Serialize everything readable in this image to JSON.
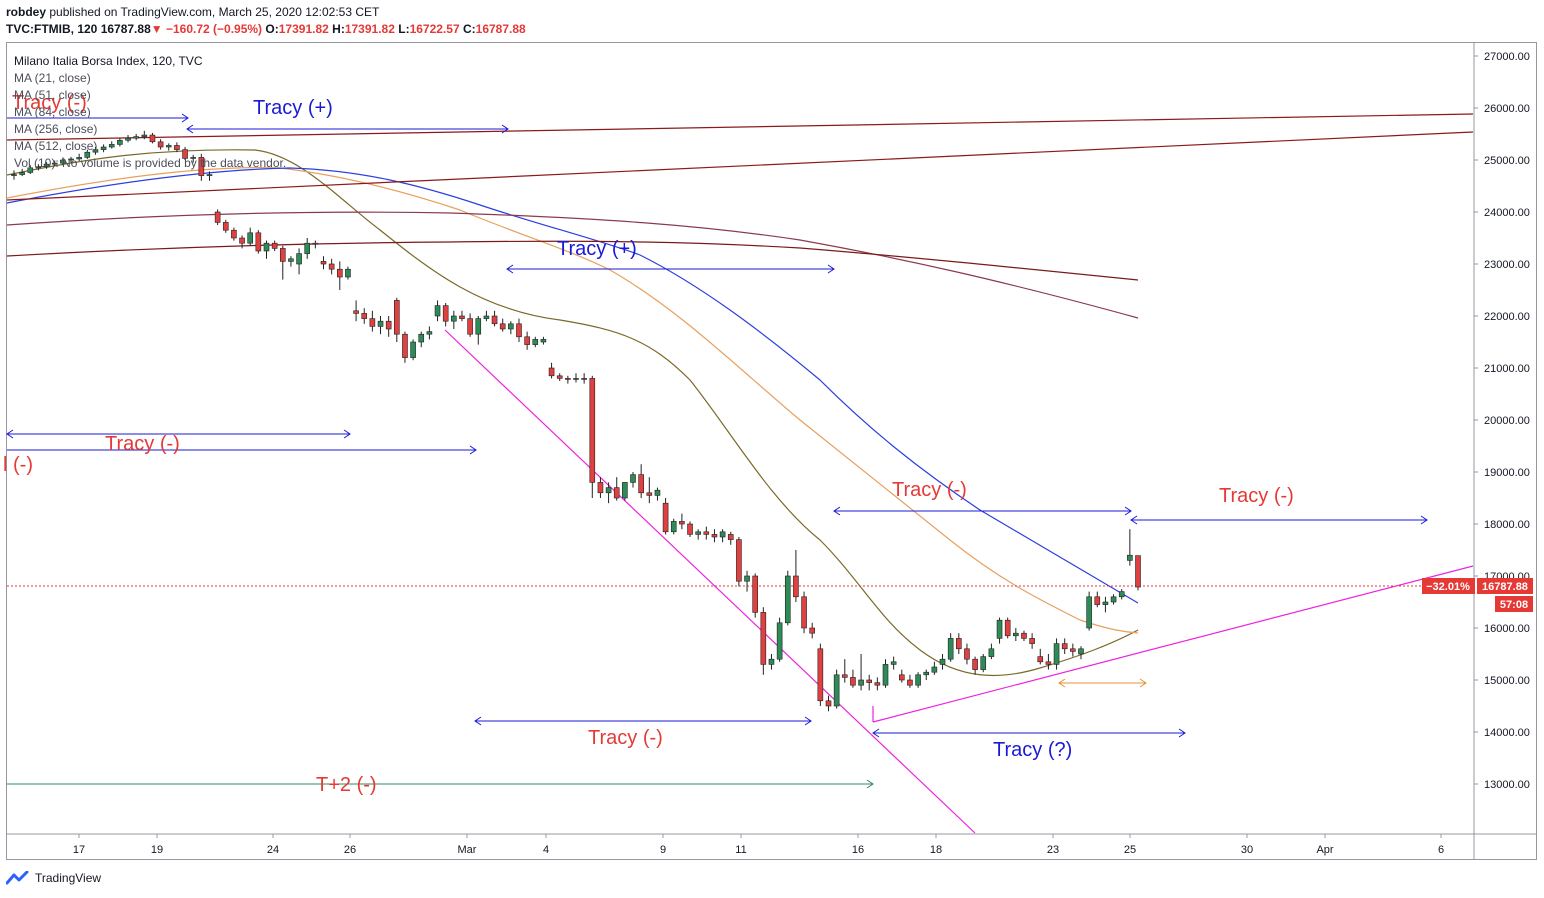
{
  "header": {
    "author": "robdey",
    "published_text": "published on TradingView.com, March 25, 2020 12:02:53 CET",
    "symbol": "TVC:FTMIB, 120",
    "last": "16787.88",
    "change": "−160.72 (−0.95%)",
    "open_label": "O:",
    "open": "17391.82",
    "high_label": "H:",
    "high": "17391.82",
    "low_label": "L:",
    "low": "16722.57",
    "close_label": "C:",
    "close": "16787.88"
  },
  "legend": {
    "title": "Milano Italia Borsa Index, 120, TVC",
    "lines": [
      "MA (21, close)",
      "MA (51, close)",
      "MA (84, close)",
      "MA (256, close)",
      "MA (512, close)",
      "Vol (10): No volume is provided by the data vendor."
    ]
  },
  "price_labels": {
    "percent": "−32.01%",
    "price": "16787.88",
    "countdown": "57:08"
  },
  "brand": "TradingView",
  "chart_data": {
    "type": "candlestick",
    "ylim": [
      12000,
      27300
    ],
    "y_ticks": [
      13000,
      14000,
      15000,
      16000,
      17000,
      18000,
      19000,
      20000,
      21000,
      22000,
      23000,
      24000,
      25000,
      26000,
      27000
    ],
    "y_tick_labels": [
      "13000.00",
      "14000.00",
      "15000.00",
      "16000.00",
      "17000.00",
      "18000.00",
      "19000.00",
      "20000.00",
      "21000.00",
      "22000.00",
      "23000.00",
      "24000.00",
      "25000.00",
      "26000.00",
      "27000.00"
    ],
    "x_tick_labels": [
      "17",
      "19",
      "24",
      "26",
      "Mar",
      "4",
      "9",
      "11",
      "16",
      "18",
      "23",
      "25",
      "30",
      "Apr",
      "6"
    ],
    "last_price": 16787.88,
    "annotations": [
      "Tracy (-)",
      "Tracy (+)",
      "Tracy (+)",
      "Tracy (-)",
      "l (-)",
      "Tracy (-)",
      "Tracy (-)",
      "Tracy (-)",
      "Tracy (?)",
      "T+2 (-)"
    ],
    "ma_series": [
      "MA (21, close)",
      "MA (51, close)",
      "MA (84, close)",
      "MA (256, close)",
      "MA (512, close)"
    ],
    "candles": [
      {
        "o": 24700,
        "h": 24800,
        "l": 24620,
        "c": 24720
      },
      {
        "o": 24720,
        "h": 24830,
        "l": 24690,
        "c": 24760
      },
      {
        "o": 24760,
        "h": 24900,
        "l": 24730,
        "c": 24850
      },
      {
        "o": 24850,
        "h": 24920,
        "l": 24800,
        "c": 24870
      },
      {
        "o": 24870,
        "h": 24960,
        "l": 24830,
        "c": 24920
      },
      {
        "o": 24920,
        "h": 24990,
        "l": 24880,
        "c": 24940
      },
      {
        "o": 24940,
        "h": 25050,
        "l": 24900,
        "c": 25000
      },
      {
        "o": 25000,
        "h": 25060,
        "l": 24950,
        "c": 25020
      },
      {
        "o": 25020,
        "h": 25120,
        "l": 24980,
        "c": 25050
      },
      {
        "o": 25050,
        "h": 25200,
        "l": 25020,
        "c": 25150
      },
      {
        "o": 25150,
        "h": 25250,
        "l": 25100,
        "c": 25200
      },
      {
        "o": 25200,
        "h": 25300,
        "l": 25150,
        "c": 25250
      },
      {
        "o": 25250,
        "h": 25360,
        "l": 25220,
        "c": 25300
      },
      {
        "o": 25300,
        "h": 25420,
        "l": 25260,
        "c": 25380
      },
      {
        "o": 25380,
        "h": 25480,
        "l": 25340,
        "c": 25420
      },
      {
        "o": 25420,
        "h": 25500,
        "l": 25380,
        "c": 25450
      },
      {
        "o": 25450,
        "h": 25560,
        "l": 25400,
        "c": 25480
      },
      {
        "o": 25480,
        "h": 25520,
        "l": 25320,
        "c": 25350
      },
      {
        "o": 25350,
        "h": 25400,
        "l": 25200,
        "c": 25250
      },
      {
        "o": 25250,
        "h": 25320,
        "l": 25180,
        "c": 25280
      },
      {
        "o": 25280,
        "h": 25340,
        "l": 25150,
        "c": 25200
      },
      {
        "o": 25200,
        "h": 25250,
        "l": 25000,
        "c": 25030
      },
      {
        "o": 25030,
        "h": 25100,
        "l": 24950,
        "c": 25050
      },
      {
        "o": 25050,
        "h": 25120,
        "l": 24600,
        "c": 24700
      },
      {
        "o": 24700,
        "h": 24780,
        "l": 24600,
        "c": 24720
      },
      {
        "o": 24000,
        "h": 24050,
        "l": 23750,
        "c": 23800
      },
      {
        "o": 23800,
        "h": 23850,
        "l": 23600,
        "c": 23650
      },
      {
        "o": 23650,
        "h": 23700,
        "l": 23450,
        "c": 23500
      },
      {
        "o": 23500,
        "h": 23550,
        "l": 23300,
        "c": 23400
      },
      {
        "o": 23400,
        "h": 23700,
        "l": 23350,
        "c": 23600
      },
      {
        "o": 23600,
        "h": 23650,
        "l": 23200,
        "c": 23250
      },
      {
        "o": 23250,
        "h": 23450,
        "l": 23100,
        "c": 23400
      },
      {
        "o": 23400,
        "h": 23450,
        "l": 23250,
        "c": 23300
      },
      {
        "o": 23300,
        "h": 23350,
        "l": 22700,
        "c": 23050
      },
      {
        "o": 23050,
        "h": 23150,
        "l": 22950,
        "c": 23100
      },
      {
        "o": 23000,
        "h": 23300,
        "l": 22800,
        "c": 23200
      },
      {
        "o": 23200,
        "h": 23500,
        "l": 23100,
        "c": 23400
      },
      {
        "o": 23400,
        "h": 23450,
        "l": 23300,
        "c": 23380
      },
      {
        "o": 23050,
        "h": 23150,
        "l": 22900,
        "c": 23000
      },
      {
        "o": 23000,
        "h": 23100,
        "l": 22800,
        "c": 22900
      },
      {
        "o": 22900,
        "h": 23050,
        "l": 22500,
        "c": 22750
      },
      {
        "o": 22750,
        "h": 22950,
        "l": 22700,
        "c": 22900
      },
      {
        "o": 22100,
        "h": 22300,
        "l": 21900,
        "c": 22050
      },
      {
        "o": 22050,
        "h": 22150,
        "l": 21850,
        "c": 21950
      },
      {
        "o": 21950,
        "h": 22100,
        "l": 21700,
        "c": 21800
      },
      {
        "o": 21800,
        "h": 22000,
        "l": 21650,
        "c": 21900
      },
      {
        "o": 21900,
        "h": 22000,
        "l": 21600,
        "c": 21750
      },
      {
        "o": 22300,
        "h": 22350,
        "l": 21500,
        "c": 21650
      },
      {
        "o": 21650,
        "h": 21700,
        "l": 21100,
        "c": 21200
      },
      {
        "o": 21200,
        "h": 21550,
        "l": 21150,
        "c": 21500
      },
      {
        "o": 21500,
        "h": 21700,
        "l": 21400,
        "c": 21650
      },
      {
        "o": 21650,
        "h": 21800,
        "l": 21550,
        "c": 21700
      },
      {
        "o": 22000,
        "h": 22300,
        "l": 21900,
        "c": 22200
      },
      {
        "o": 22200,
        "h": 22250,
        "l": 21800,
        "c": 21900
      },
      {
        "o": 21900,
        "h": 22100,
        "l": 21750,
        "c": 22000
      },
      {
        "o": 22000,
        "h": 22100,
        "l": 21900,
        "c": 21950
      },
      {
        "o": 21950,
        "h": 22050,
        "l": 21600,
        "c": 21650
      },
      {
        "o": 21650,
        "h": 22000,
        "l": 21450,
        "c": 21950
      },
      {
        "o": 21950,
        "h": 22100,
        "l": 21900,
        "c": 22000
      },
      {
        "o": 22000,
        "h": 22100,
        "l": 21800,
        "c": 21850
      },
      {
        "o": 21850,
        "h": 21950,
        "l": 21700,
        "c": 21750
      },
      {
        "o": 21750,
        "h": 21900,
        "l": 21650,
        "c": 21850
      },
      {
        "o": 21850,
        "h": 21950,
        "l": 21500,
        "c": 21600
      },
      {
        "o": 21600,
        "h": 21700,
        "l": 21350,
        "c": 21450
      },
      {
        "o": 21450,
        "h": 21600,
        "l": 21400,
        "c": 21550
      },
      {
        "o": 21500,
        "h": 21600,
        "l": 21450,
        "c": 21550
      },
      {
        "o": 21000,
        "h": 21100,
        "l": 20800,
        "c": 20850
      },
      {
        "o": 20850,
        "h": 20900,
        "l": 20750,
        "c": 20800
      },
      {
        "o": 20800,
        "h": 20850,
        "l": 20700,
        "c": 20780
      },
      {
        "o": 20780,
        "h": 20900,
        "l": 20720,
        "c": 20800
      },
      {
        "o": 20800,
        "h": 20900,
        "l": 20700,
        "c": 20780
      },
      {
        "o": 20800,
        "h": 20850,
        "l": 18500,
        "c": 18800
      },
      {
        "o": 18800,
        "h": 18900,
        "l": 18500,
        "c": 18600
      },
      {
        "o": 18600,
        "h": 18800,
        "l": 18400,
        "c": 18700
      },
      {
        "o": 18700,
        "h": 18900,
        "l": 18450,
        "c": 18500
      },
      {
        "o": 18500,
        "h": 18800,
        "l": 18450,
        "c": 18800
      },
      {
        "o": 18800,
        "h": 19000,
        "l": 18700,
        "c": 18950
      },
      {
        "o": 18950,
        "h": 19150,
        "l": 18500,
        "c": 18600
      },
      {
        "o": 18600,
        "h": 18900,
        "l": 18400,
        "c": 18550
      },
      {
        "o": 18550,
        "h": 18700,
        "l": 18450,
        "c": 18650
      },
      {
        "o": 18400,
        "h": 18500,
        "l": 17800,
        "c": 17850
      },
      {
        "o": 17850,
        "h": 18100,
        "l": 17800,
        "c": 18050
      },
      {
        "o": 18050,
        "h": 18200,
        "l": 17900,
        "c": 18000
      },
      {
        "o": 18000,
        "h": 18050,
        "l": 17750,
        "c": 17800
      },
      {
        "o": 17800,
        "h": 17900,
        "l": 17700,
        "c": 17850
      },
      {
        "o": 17850,
        "h": 17950,
        "l": 17700,
        "c": 17800
      },
      {
        "o": 17800,
        "h": 17900,
        "l": 17650,
        "c": 17750
      },
      {
        "o": 17750,
        "h": 17900,
        "l": 17650,
        "c": 17850
      },
      {
        "o": 17800,
        "h": 17850,
        "l": 17600,
        "c": 17700
      },
      {
        "o": 17700,
        "h": 17750,
        "l": 16800,
        "c": 16900
      },
      {
        "o": 16900,
        "h": 17100,
        "l": 16700,
        "c": 17000
      },
      {
        "o": 17000,
        "h": 17050,
        "l": 16200,
        "c": 16300
      },
      {
        "o": 16300,
        "h": 16400,
        "l": 15100,
        "c": 15300
      },
      {
        "o": 15300,
        "h": 15500,
        "l": 15200,
        "c": 15400
      },
      {
        "o": 15400,
        "h": 16200,
        "l": 15350,
        "c": 16100
      },
      {
        "o": 16100,
        "h": 17100,
        "l": 16050,
        "c": 17000
      },
      {
        "o": 17000,
        "h": 17500,
        "l": 16500,
        "c": 16600
      },
      {
        "o": 16600,
        "h": 16700,
        "l": 15900,
        "c": 16000
      },
      {
        "o": 16000,
        "h": 16100,
        "l": 15800,
        "c": 15900
      },
      {
        "o": 15600,
        "h": 15700,
        "l": 14500,
        "c": 14600
      },
      {
        "o": 14600,
        "h": 14700,
        "l": 14400,
        "c": 14500
      },
      {
        "o": 14500,
        "h": 15200,
        "l": 14450,
        "c": 15100
      },
      {
        "o": 15100,
        "h": 15400,
        "l": 14950,
        "c": 15050
      },
      {
        "o": 15050,
        "h": 15200,
        "l": 14850,
        "c": 14900
      },
      {
        "o": 14900,
        "h": 15500,
        "l": 14800,
        "c": 15000
      },
      {
        "o": 15000,
        "h": 15100,
        "l": 14800,
        "c": 14950
      },
      {
        "o": 14950,
        "h": 15050,
        "l": 14800,
        "c": 14900
      },
      {
        "o": 14900,
        "h": 15400,
        "l": 14850,
        "c": 15300
      },
      {
        "o": 15300,
        "h": 15450,
        "l": 15200,
        "c": 15350
      },
      {
        "o": 15100,
        "h": 15200,
        "l": 14950,
        "c": 15000
      },
      {
        "o": 15000,
        "h": 15100,
        "l": 14850,
        "c": 14900
      },
      {
        "o": 14900,
        "h": 15150,
        "l": 14850,
        "c": 15100
      },
      {
        "o": 15100,
        "h": 15200,
        "l": 15000,
        "c": 15150
      },
      {
        "o": 15150,
        "h": 15350,
        "l": 15100,
        "c": 15250
      },
      {
        "o": 15300,
        "h": 15500,
        "l": 15200,
        "c": 15400
      },
      {
        "o": 15400,
        "h": 15900,
        "l": 15350,
        "c": 15800
      },
      {
        "o": 15800,
        "h": 15900,
        "l": 15500,
        "c": 15600
      },
      {
        "o": 15600,
        "h": 15700,
        "l": 15300,
        "c": 15400
      },
      {
        "o": 15400,
        "h": 15450,
        "l": 15100,
        "c": 15200
      },
      {
        "o": 15200,
        "h": 15500,
        "l": 15150,
        "c": 15450
      },
      {
        "o": 15450,
        "h": 15700,
        "l": 15400,
        "c": 15600
      },
      {
        "o": 15800,
        "h": 16200,
        "l": 15700,
        "c": 16150
      },
      {
        "o": 16150,
        "h": 16200,
        "l": 15800,
        "c": 15850
      },
      {
        "o": 15850,
        "h": 16000,
        "l": 15750,
        "c": 15900
      },
      {
        "o": 15900,
        "h": 15950,
        "l": 15750,
        "c": 15800
      },
      {
        "o": 15800,
        "h": 15900,
        "l": 15600,
        "c": 15700
      },
      {
        "o": 15450,
        "h": 15600,
        "l": 15300,
        "c": 15350
      },
      {
        "o": 15350,
        "h": 15500,
        "l": 15200,
        "c": 15300
      },
      {
        "o": 15300,
        "h": 15800,
        "l": 15200,
        "c": 15700
      },
      {
        "o": 15700,
        "h": 15800,
        "l": 15500,
        "c": 15600
      },
      {
        "o": 15600,
        "h": 15700,
        "l": 15450,
        "c": 15550
      },
      {
        "o": 15500,
        "h": 15650,
        "l": 15400,
        "c": 15600
      },
      {
        "o": 16000,
        "h": 16700,
        "l": 15950,
        "c": 16600
      },
      {
        "o": 16600,
        "h": 16700,
        "l": 16400,
        "c": 16450
      },
      {
        "o": 16450,
        "h": 16600,
        "l": 16300,
        "c": 16500
      },
      {
        "o": 16500,
        "h": 16650,
        "l": 16450,
        "c": 16600
      },
      {
        "o": 16600,
        "h": 16750,
        "l": 16550,
        "c": 16700
      },
      {
        "o": 17300,
        "h": 17900,
        "l": 17200,
        "c": 17400
      },
      {
        "o": 17392,
        "h": 17392,
        "l": 16723,
        "c": 16788
      }
    ]
  }
}
